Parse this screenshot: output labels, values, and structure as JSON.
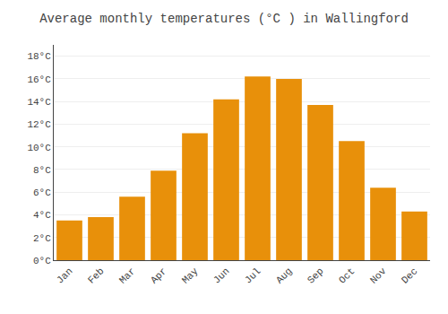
{
  "chart_data": {
    "type": "bar",
    "title": "Average monthly temperatures (°C ) in Wallingford",
    "categories": [
      "Jan",
      "Feb",
      "Mar",
      "Apr",
      "May",
      "Jun",
      "Jul",
      "Aug",
      "Sep",
      "Oct",
      "Nov",
      "Dec"
    ],
    "values": [
      3.5,
      3.8,
      5.6,
      7.9,
      11.2,
      14.2,
      16.2,
      16.0,
      13.7,
      10.5,
      6.4,
      4.3
    ],
    "color": "#E8900A",
    "ylim": [
      0,
      19.0
    ],
    "yticks": [
      {
        "value": 0,
        "label": "0°C"
      },
      {
        "value": 2,
        "label": "2°C"
      },
      {
        "value": 4,
        "label": "4°C"
      },
      {
        "value": 6,
        "label": "6°C"
      },
      {
        "value": 8,
        "label": "8°C"
      },
      {
        "value": 10,
        "label": "10°C"
      },
      {
        "value": 12,
        "label": "12°C"
      },
      {
        "value": 14,
        "label": "14°C"
      },
      {
        "value": 16,
        "label": "16°C"
      },
      {
        "value": 18,
        "label": "18°C"
      }
    ],
    "grid": true
  }
}
